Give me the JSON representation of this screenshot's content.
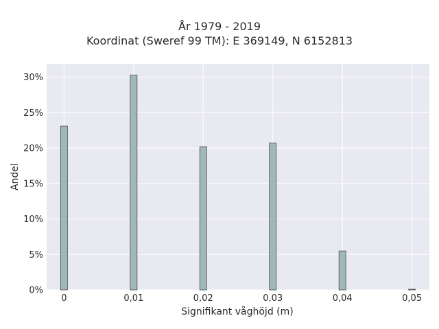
{
  "chart_data": {
    "type": "bar",
    "title": "År 1979 - 2019",
    "subtitle": "Koordinat (Sweref 99 TM): E 369149, N 6152813",
    "xlabel": "Signifikant våghöjd (m)",
    "ylabel": "Andel",
    "x": [
      0,
      0.01,
      0.02,
      0.03,
      0.04,
      0.05
    ],
    "values": [
      23.1,
      30.3,
      20.2,
      20.7,
      5.5,
      0.1
    ],
    "xticks": [
      "0",
      "0,01",
      "0,02",
      "0,03",
      "0,04",
      "0,05"
    ],
    "yticks": [
      "0%",
      "5%",
      "10%",
      "15%",
      "20%",
      "25%",
      "30%"
    ],
    "xlim": [
      -0.0025,
      0.0525
    ],
    "ylim": [
      0,
      31.9
    ],
    "grid": true,
    "colors": {
      "background": "#e9e9f1",
      "grid": "#ffffff",
      "bar_fill": "#a0b8b8",
      "bar_stroke": "#3f4a4a"
    }
  }
}
